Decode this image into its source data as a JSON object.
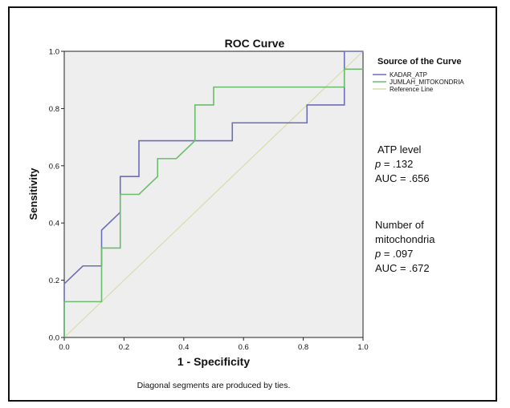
{
  "chart_data": {
    "type": "line",
    "title": "ROC Curve",
    "xlabel": "1 - Specificity",
    "ylabel": "Sensitivity",
    "xlim": [
      0.0,
      1.0
    ],
    "ylim": [
      0.0,
      1.0
    ],
    "xticks": [
      "0.0",
      "0.2",
      "0.4",
      "0.6",
      "0.8",
      "1.0"
    ],
    "yticks": [
      "0.0",
      "0.2",
      "0.4",
      "0.6",
      "0.8",
      "1.0"
    ],
    "grid": false,
    "legend_title": "Source of the Curve",
    "legend_position": "top-right",
    "series": [
      {
        "name": "KADAR_ATP",
        "color": "#6b6fb5",
        "x": [
          0.0,
          0.0,
          0.0625,
          0.0625,
          0.125,
          0.125,
          0.1875,
          0.1875,
          0.25,
          0.25,
          0.5625,
          0.5625,
          0.8125,
          0.8125,
          0.9375,
          0.9375,
          1.0
        ],
        "y": [
          0.0,
          0.1875,
          0.25,
          0.25,
          0.25,
          0.375,
          0.4375,
          0.5625,
          0.5625,
          0.6875,
          0.6875,
          0.75,
          0.75,
          0.8125,
          0.8125,
          1.0,
          1.0
        ]
      },
      {
        "name": "JUMLAH_MITOKONDRIA",
        "color": "#6dbb6d",
        "x": [
          0.0,
          0.0,
          0.125,
          0.125,
          0.1875,
          0.1875,
          0.25,
          0.3125,
          0.3125,
          0.375,
          0.4375,
          0.4375,
          0.5,
          0.5,
          0.9375,
          0.9375,
          1.0
        ],
        "y": [
          0.0,
          0.125,
          0.125,
          0.3125,
          0.3125,
          0.5,
          0.5,
          0.5625,
          0.625,
          0.625,
          0.6875,
          0.8125,
          0.8125,
          0.875,
          0.875,
          0.9375,
          0.9375
        ]
      },
      {
        "name": "Reference Line",
        "color": "#d9dcaa",
        "x": [
          0.0,
          1.0
        ],
        "y": [
          0.0,
          1.0
        ]
      }
    ],
    "footnote": "Diagonal segments are produced by ties."
  },
  "annotations": {
    "atp_title": "ATP level",
    "atp_p_symbol": "p",
    "atp_p_value": " = .132",
    "atp_auc": "AUC = .656",
    "mito_title_1": "Number of",
    "mito_title_2": "mitochondria",
    "mito_p_symbol": "p",
    "mito_p_value": " = .097",
    "mito_auc": "AUC = .672"
  },
  "colors": {
    "plot_background": "#eeeeee",
    "frame": "#111111"
  }
}
